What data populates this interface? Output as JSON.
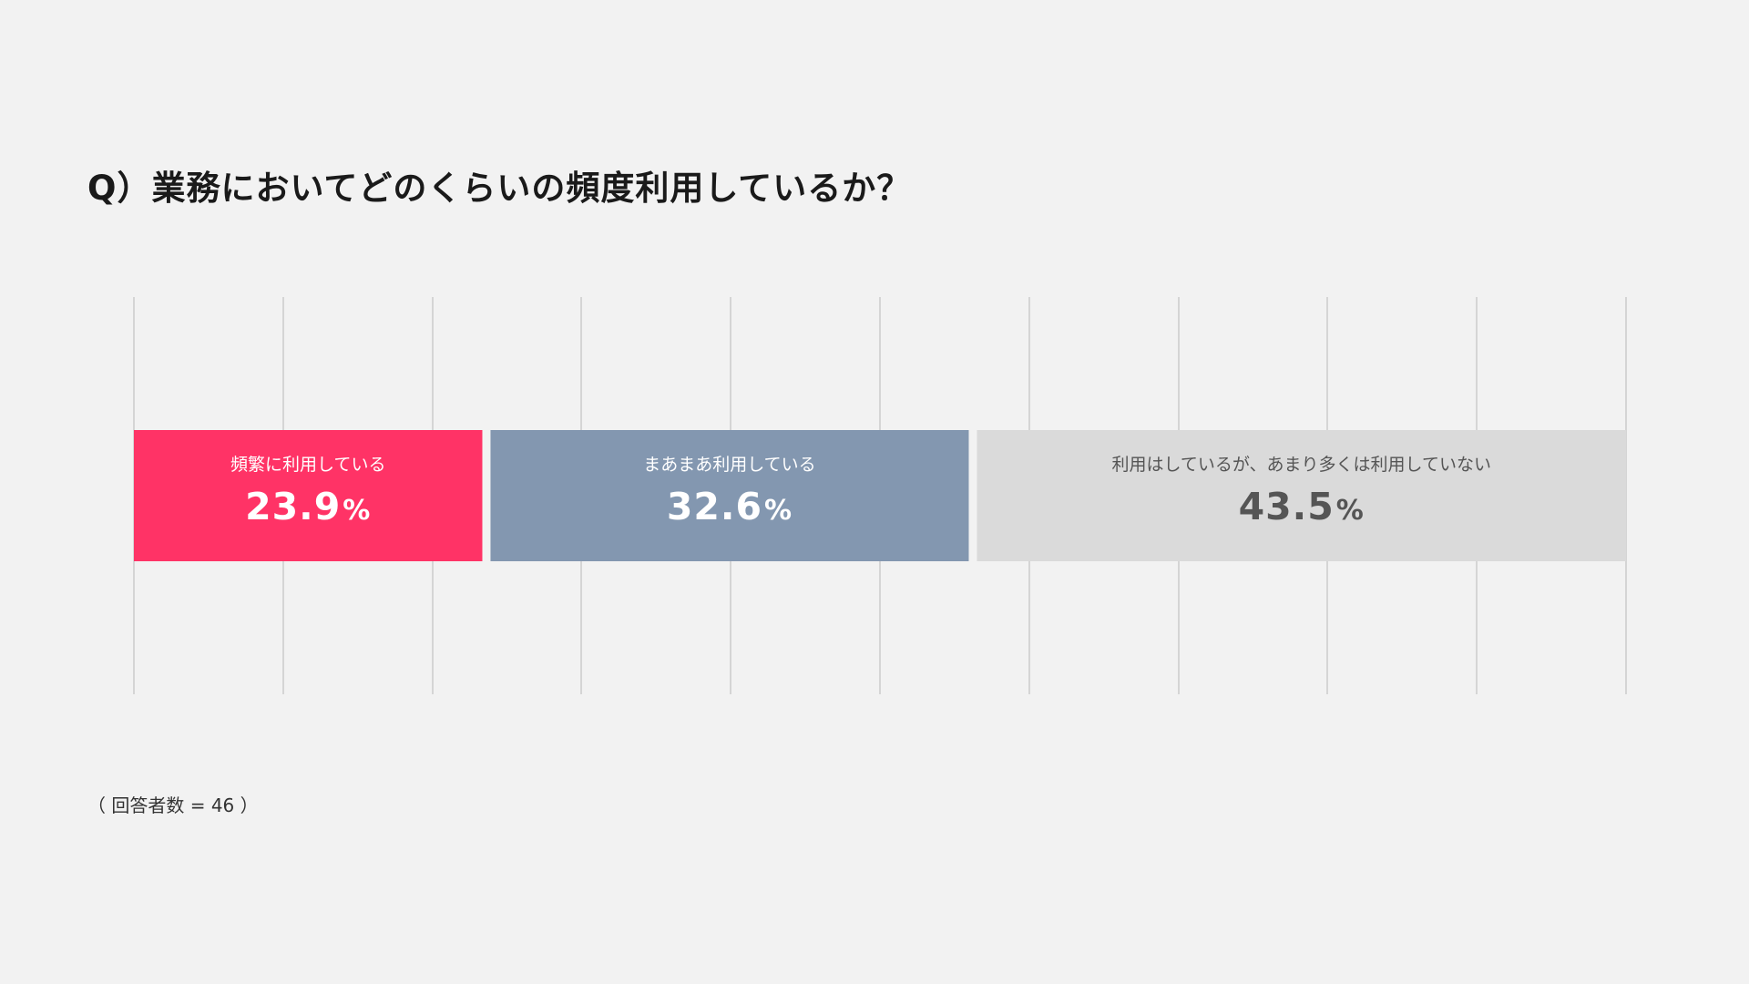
{
  "title": "Q）業務においてどのくらいの頻度利用しているか？",
  "footnote": "（ 回答者数 = 46 ）",
  "chart_data": {
    "type": "bar",
    "orientation": "horizontal-stacked-100",
    "title": "Q）業務においてどのくらいの頻度利用しているか？",
    "xlim": [
      0,
      100
    ],
    "grid": true,
    "grid_divisions": 10,
    "legend": "none",
    "categories": [
      "頻繁に利用している",
      "まあまあ利用している",
      "利用はしているが、あまり多くは利用していない"
    ],
    "values": [
      23.9,
      32.6,
      43.5
    ],
    "value_labels": [
      "23.9",
      "32.6",
      "43.5"
    ],
    "unit": "%",
    "colors": [
      "#ff3366",
      "#8397b0",
      "#dadada"
    ],
    "label_colors": [
      "#ffffff",
      "#ffffff",
      "#555555"
    ]
  }
}
